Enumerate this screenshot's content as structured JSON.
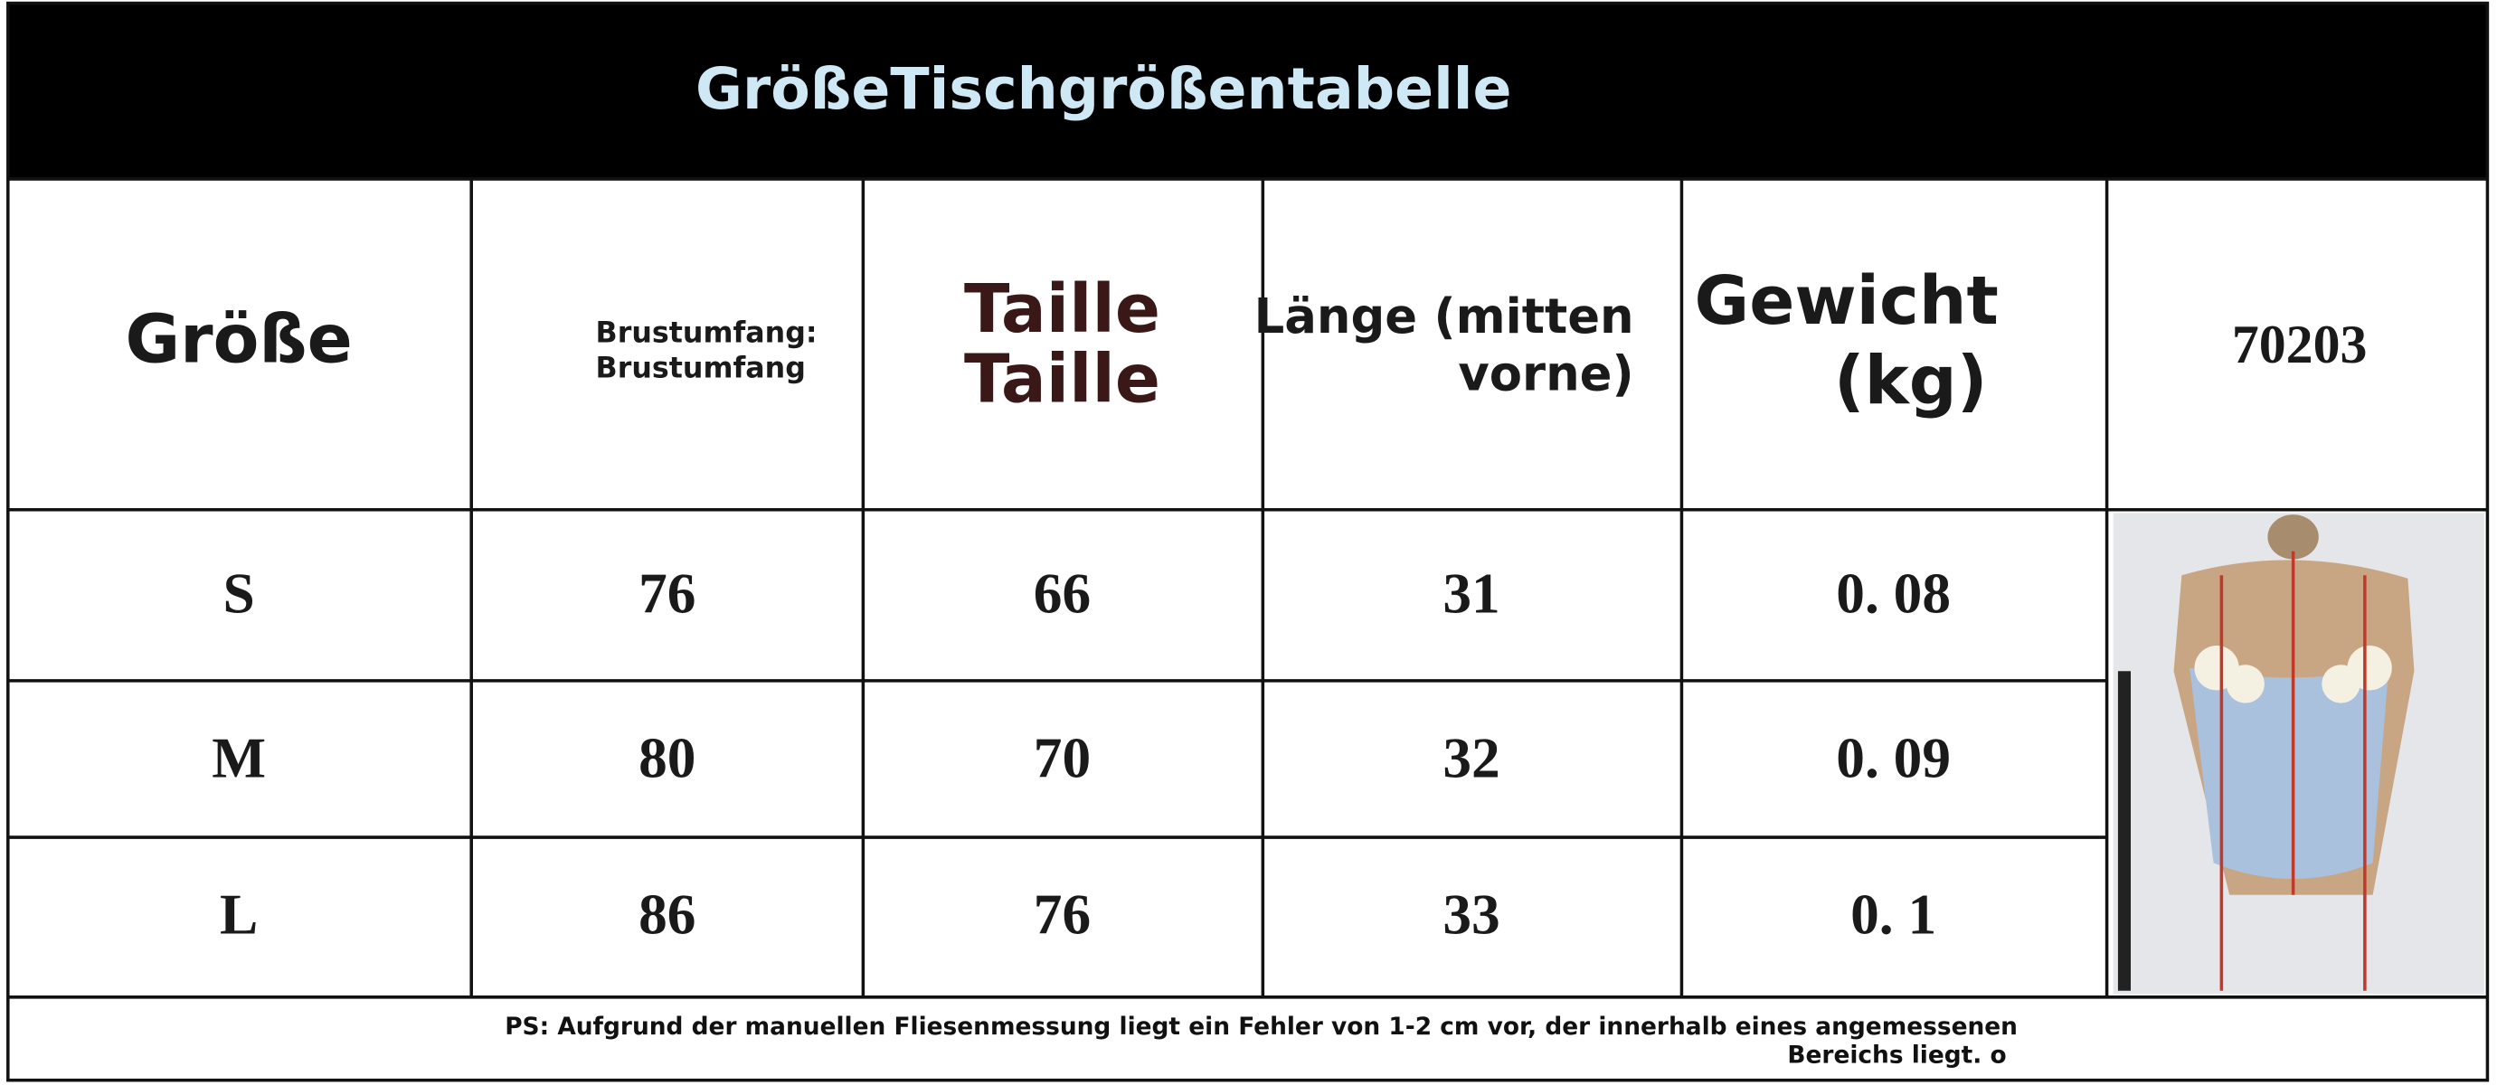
{
  "title": "GrößeTischgrößentabelle",
  "table": {
    "header": [
      [
        "Größe"
      ],
      [
        "Brustumfang:",
        "Brustumfang"
      ],
      [
        "Taille",
        "Taille"
      ],
      [
        "Länge (mitten",
        "vorne)"
      ],
      [
        "Gewicht",
        "(kg)"
      ],
      [
        "70203"
      ]
    ],
    "rows": [
      [
        "S",
        "76",
        "66",
        "31",
        "0. 08"
      ],
      [
        "M",
        "80",
        "70",
        "32",
        "0. 09"
      ],
      [
        "L",
        "86",
        "76",
        "33",
        "0. 1"
      ]
    ]
  },
  "footnote": [
    "PS: Aufgrund der manuellen Fliesenmessung liegt ein Fehler von 1-2 cm vor, der innerhalb eines angemessenen",
    "Bereichs liegt. o"
  ]
}
